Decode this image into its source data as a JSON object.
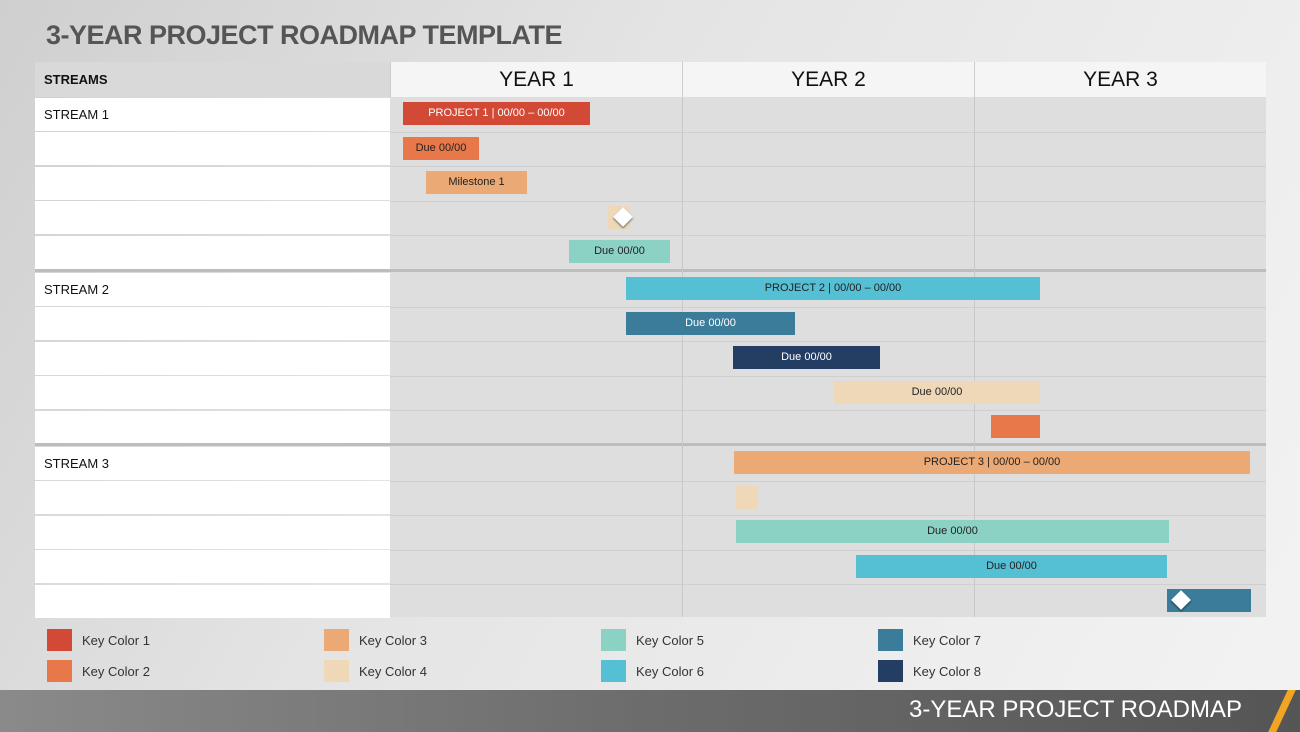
{
  "title": "3-YEAR PROJECT ROADMAP TEMPLATE",
  "header": {
    "streams": "STREAMS",
    "years": [
      "YEAR 1",
      "YEAR 2",
      "YEAR 3"
    ]
  },
  "streams": [
    "STREAM 1",
    "STREAM 2",
    "STREAM 3"
  ],
  "colors": {
    "key1": "#d24a35",
    "key2": "#e8784a",
    "key3": "#eaa975",
    "key4": "#eed8b8",
    "key5": "#8cd2c4",
    "key6": "#55bfd4",
    "key7": "#3a7c9a",
    "key8": "#243d63"
  },
  "bars": [
    {
      "label": "PROJECT 1  |  00/00 – 00/00",
      "color": "key1"
    },
    {
      "label": "Due 00/00",
      "color": "key2"
    },
    {
      "label": "Milestone 1",
      "color": "key3"
    },
    {
      "label": "",
      "color": "key4",
      "milestone_icon": "diamond-icon"
    },
    {
      "label": "Due 00/00",
      "color": "key5"
    },
    {
      "label": "PROJECT 2  |  00/00 – 00/00",
      "color": "key6"
    },
    {
      "label": "Due 00/00",
      "color": "key7"
    },
    {
      "label": "Due 00/00",
      "color": "key8"
    },
    {
      "label": "Due 00/00",
      "color": "key4"
    },
    {
      "label": "",
      "color": "key2"
    },
    {
      "label": "PROJECT 3  |  00/00 – 00/00",
      "color": "key3"
    },
    {
      "label": "",
      "color": "key4"
    },
    {
      "label": "Due 00/00",
      "color": "key5"
    },
    {
      "label": "Due 00/00",
      "color": "key6"
    },
    {
      "label": "",
      "color": "key7",
      "milestone_icon": "diamond-icon"
    }
  ],
  "legend": [
    {
      "label": "Key Color 1",
      "color": "key1"
    },
    {
      "label": "Key Color 2",
      "color": "key2"
    },
    {
      "label": "Key Color 3",
      "color": "key3"
    },
    {
      "label": "Key Color 4",
      "color": "key4"
    },
    {
      "label": "Key Color 5",
      "color": "key5"
    },
    {
      "label": "Key Color 6",
      "color": "key6"
    },
    {
      "label": "Key Color 7",
      "color": "key7"
    },
    {
      "label": "Key Color 8",
      "color": "key8"
    }
  ],
  "footer": "3-YEAR PROJECT ROADMAP"
}
